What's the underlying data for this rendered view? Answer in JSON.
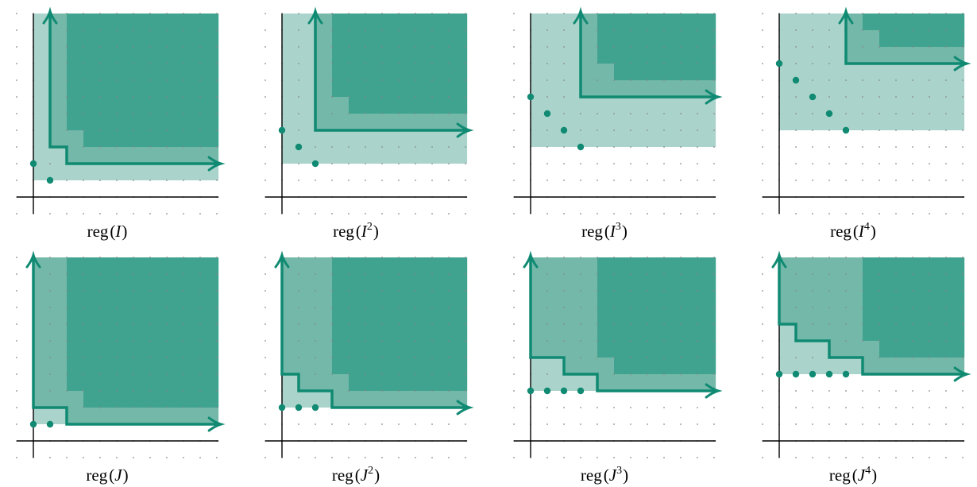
{
  "panels": [
    {
      "label": {
        "func": "reg",
        "open": "(",
        "base": "I",
        "close": ")"
      }
    },
    {
      "label": {
        "func": "reg",
        "open": "(",
        "base": "I",
        "exponent": "2",
        "close": ")"
      }
    },
    {
      "label": {
        "func": "reg",
        "open": "(",
        "base": "I",
        "exponent": "3",
        "close": ")"
      }
    },
    {
      "label": {
        "func": "reg",
        "open": "(",
        "base": "I",
        "exponent": "4",
        "close": ")"
      }
    },
    {
      "label": {
        "func": "reg",
        "open": "(",
        "base": "J",
        "close": ")"
      }
    },
    {
      "label": {
        "func": "reg",
        "open": "(",
        "base": "J",
        "exponent": "2",
        "close": ")"
      }
    },
    {
      "label": {
        "func": "reg",
        "open": "(",
        "base": "J",
        "exponent": "3",
        "close": ")"
      }
    },
    {
      "label": {
        "func": "reg",
        "open": "(",
        "base": "J",
        "exponent": "4",
        "close": ")"
      }
    }
  ]
}
